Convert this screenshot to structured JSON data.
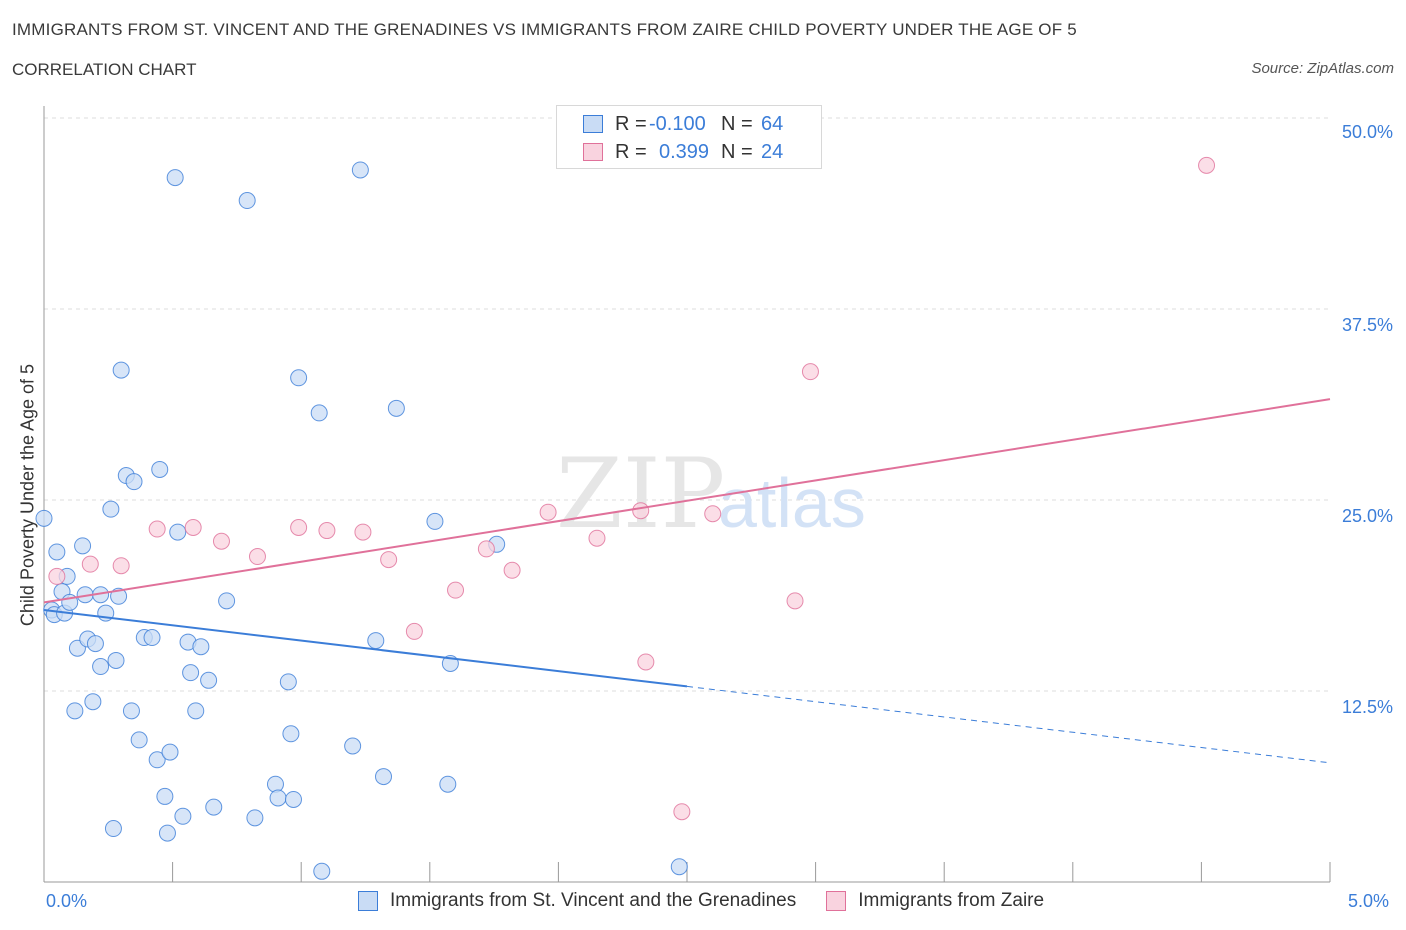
{
  "header": {
    "title": "IMMIGRANTS FROM ST. VINCENT AND THE GRENADINES VS IMMIGRANTS FROM ZAIRE CHILD POVERTY UNDER THE AGE OF 5",
    "subtitle": "CORRELATION CHART",
    "source": "Source: ZipAtlas.com"
  },
  "legend": {
    "rows": [
      {
        "r_label": "R =",
        "r_value": "-0.100",
        "n_label": "N =",
        "n_value": "64",
        "color": "#a9c8f0"
      },
      {
        "r_label": "R =",
        "r_value": "0.399",
        "n_label": "N =",
        "n_value": "24",
        "color": "#f6bccd"
      }
    ]
  },
  "watermark": {
    "zip": "ZIP",
    "atlas": "atlas"
  },
  "chart_data": {
    "type": "scatter",
    "title": "IMMIGRANTS FROM ST. VINCENT AND THE GRENADINES VS IMMIGRANTS FROM ZAIRE CHILD POVERTY UNDER THE AGE OF 5",
    "xlabel": "",
    "ylabel": "Child Poverty Under the Age of 5",
    "xlim": [
      0,
      5
    ],
    "ylim": [
      0,
      50
    ],
    "x_tick_labels": [
      "0.0%",
      "5.0%"
    ],
    "y_ticks": [
      12.5,
      25.0,
      37.5,
      50.0
    ],
    "y_tick_labels": [
      "12.5%",
      "25.0%",
      "37.5%",
      "50.0%"
    ],
    "grid": true,
    "legend_position": "bottom",
    "series": [
      {
        "name": "Immigrants from St. Vincent and the Grenadines",
        "color": "#3b7dd8",
        "fill": "#c9dcf5",
        "trend": {
          "x0": 0.0,
          "y0": 17.8,
          "x1": 2.5,
          "y1": 12.8,
          "dash_to_x": 5.0,
          "dash_to_y": 7.8
        },
        "points": [
          [
            0.0,
            23.8
          ],
          [
            0.03,
            17.8
          ],
          [
            0.04,
            17.5
          ],
          [
            0.05,
            21.6
          ],
          [
            0.07,
            19.0
          ],
          [
            0.08,
            17.6
          ],
          [
            0.09,
            20.0
          ],
          [
            0.1,
            18.3
          ],
          [
            0.12,
            11.2
          ],
          [
            0.13,
            15.3
          ],
          [
            0.15,
            22.0
          ],
          [
            0.16,
            18.8
          ],
          [
            0.17,
            15.9
          ],
          [
            0.19,
            11.8
          ],
          [
            0.2,
            15.6
          ],
          [
            0.22,
            18.8
          ],
          [
            0.22,
            14.1
          ],
          [
            0.24,
            17.6
          ],
          [
            0.26,
            24.4
          ],
          [
            0.27,
            3.5
          ],
          [
            0.28,
            14.5
          ],
          [
            0.29,
            18.7
          ],
          [
            0.3,
            33.5
          ],
          [
            0.32,
            26.6
          ],
          [
            0.35,
            26.2
          ],
          [
            0.34,
            11.2
          ],
          [
            0.37,
            9.3
          ],
          [
            0.39,
            16.0
          ],
          [
            0.42,
            16.0
          ],
          [
            0.44,
            8.0
          ],
          [
            0.45,
            27.0
          ],
          [
            0.47,
            5.6
          ],
          [
            0.48,
            3.2
          ],
          [
            0.49,
            8.5
          ],
          [
            0.51,
            46.1
          ],
          [
            0.52,
            22.9
          ],
          [
            0.54,
            4.3
          ],
          [
            0.56,
            15.7
          ],
          [
            0.57,
            13.7
          ],
          [
            0.59,
            11.2
          ],
          [
            0.61,
            15.4
          ],
          [
            0.64,
            13.2
          ],
          [
            0.66,
            4.9
          ],
          [
            0.71,
            18.4
          ],
          [
            0.79,
            44.6
          ],
          [
            0.82,
            4.2
          ],
          [
            0.9,
            6.4
          ],
          [
            0.91,
            5.5
          ],
          [
            0.95,
            13.1
          ],
          [
            0.96,
            9.7
          ],
          [
            0.97,
            5.4
          ],
          [
            0.99,
            33.0
          ],
          [
            1.07,
            30.7
          ],
          [
            1.08,
            0.7
          ],
          [
            1.2,
            8.9
          ],
          [
            1.23,
            46.6
          ],
          [
            1.29,
            15.8
          ],
          [
            1.32,
            6.9
          ],
          [
            1.37,
            31.0
          ],
          [
            1.52,
            23.6
          ],
          [
            1.57,
            6.4
          ],
          [
            1.58,
            14.3
          ],
          [
            1.76,
            22.1
          ],
          [
            2.47,
            1.0
          ]
        ]
      },
      {
        "name": "Immigrants from Zaire",
        "color": "#e0719a",
        "fill": "#f9d3df",
        "trend": {
          "x0": 0.0,
          "y0": 18.3,
          "x1": 5.0,
          "y1": 31.6
        },
        "points": [
          [
            0.05,
            20.0
          ],
          [
            0.18,
            20.8
          ],
          [
            0.3,
            20.7
          ],
          [
            0.44,
            23.1
          ],
          [
            0.58,
            23.2
          ],
          [
            0.69,
            22.3
          ],
          [
            0.83,
            21.3
          ],
          [
            0.99,
            23.2
          ],
          [
            1.1,
            23.0
          ],
          [
            1.24,
            22.9
          ],
          [
            1.34,
            21.1
          ],
          [
            1.44,
            16.4
          ],
          [
            1.6,
            19.1
          ],
          [
            1.72,
            21.8
          ],
          [
            1.82,
            20.4
          ],
          [
            1.96,
            24.2
          ],
          [
            2.15,
            22.5
          ],
          [
            2.32,
            24.3
          ],
          [
            2.34,
            14.4
          ],
          [
            2.6,
            24.1
          ],
          [
            2.92,
            18.4
          ],
          [
            2.98,
            33.4
          ],
          [
            4.52,
            46.9
          ],
          [
            2.48,
            4.6
          ]
        ]
      }
    ]
  }
}
